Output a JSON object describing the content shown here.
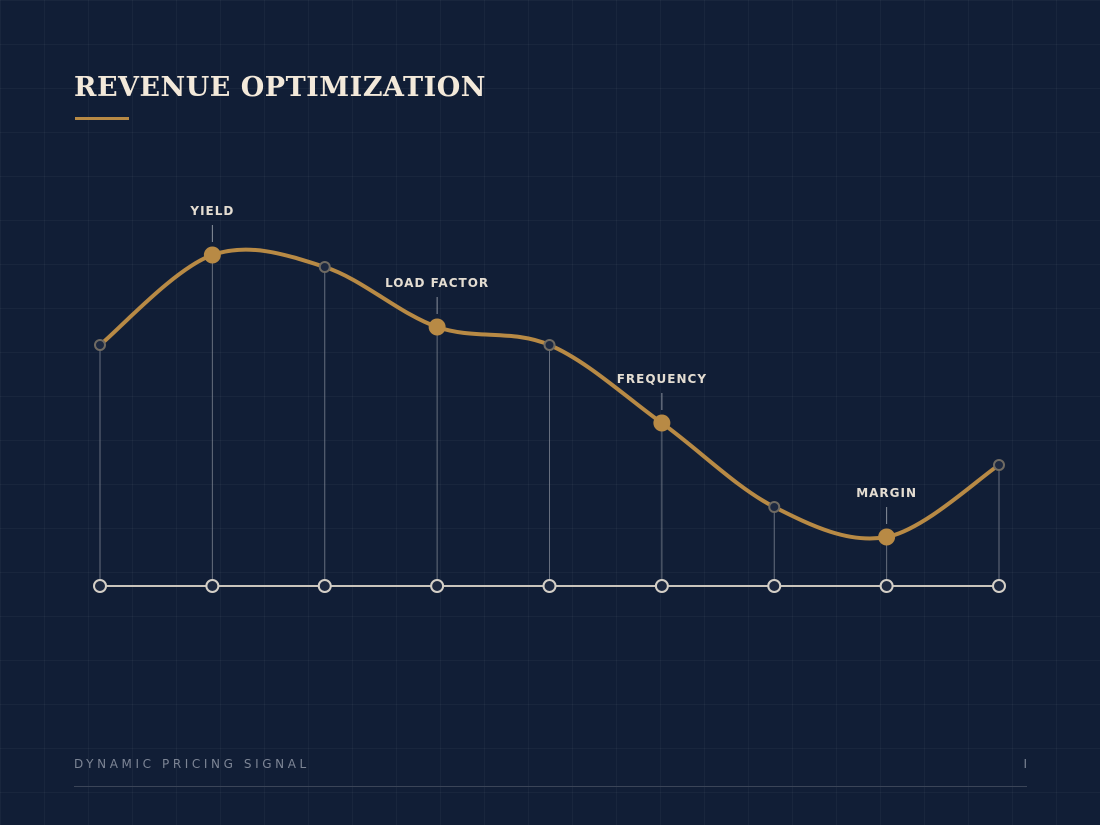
{
  "header": {
    "title": "REVENUE OPTIMIZATION"
  },
  "footer": {
    "label": "DYNAMIC PRICING SIGNAL",
    "page": "I"
  },
  "colors": {
    "background": "#111e36",
    "accent": "#b88a45",
    "text": "#f3e9da",
    "muted": "#7d8595"
  },
  "chart_data": {
    "type": "line",
    "title": "REVENUE OPTIMIZATION",
    "xlabel": "",
    "ylabel": "",
    "x": [
      1,
      2,
      3,
      4,
      5,
      6,
      7,
      8,
      9
    ],
    "ylim": [
      0,
      100
    ],
    "grid": true,
    "series": [
      {
        "values": [
          60,
          75,
          73,
          63,
          60,
          47,
          33,
          28,
          40
        ],
        "highlight_labels": [
          "",
          "YIELD",
          "",
          "LOAD FACTOR",
          "",
          "FREQUENCY",
          "",
          "MARGIN",
          ""
        ]
      }
    ]
  }
}
